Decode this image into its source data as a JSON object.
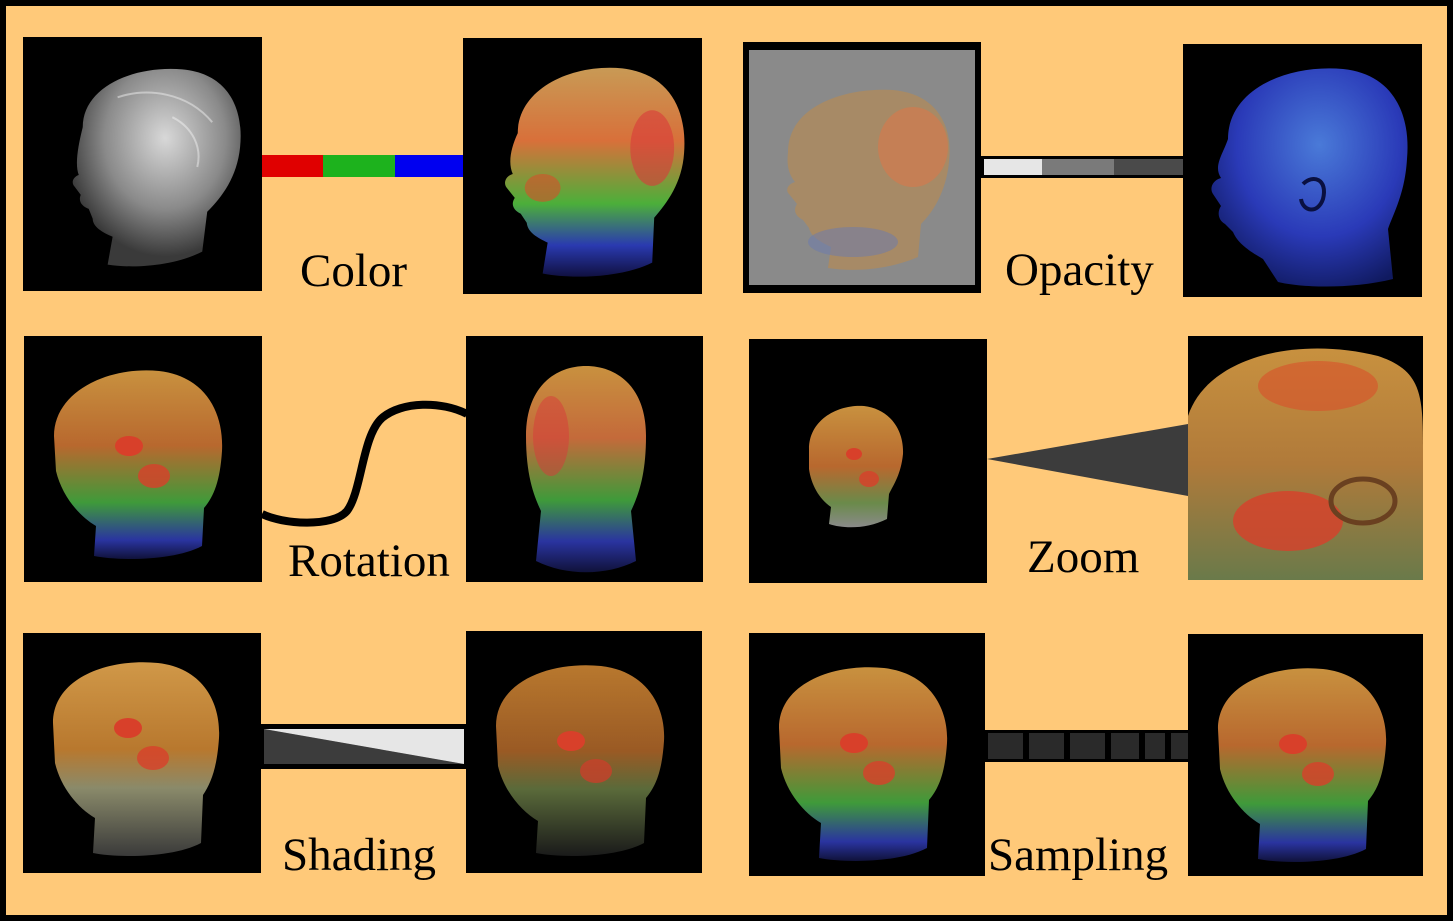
{
  "panels": [
    {
      "caption": "Color",
      "before": "head-grayscale-image",
      "after": "head-color-mapped-image",
      "connector": "red-green-blue-bar"
    },
    {
      "caption": "Opacity",
      "before": "head-low-opacity-image",
      "after": "head-high-opacity-blue-image",
      "connector": "gray-gradient-bar"
    },
    {
      "caption": "Rotation",
      "before": "head-side-view-image",
      "after": "head-back-view-image",
      "connector": "curved-s-line"
    },
    {
      "caption": "Zoom",
      "before": "head-zoomed-out-image",
      "after": "head-zoomed-in-image",
      "connector": "zoom-wedge"
    },
    {
      "caption": "Shading",
      "before": "head-unshaded-image",
      "after": "head-shaded-image",
      "connector": "shading-wedge"
    },
    {
      "caption": "Sampling",
      "before": "head-low-sampling-image",
      "after": "head-high-sampling-image",
      "connector": "dashed-sampling-bar"
    }
  ],
  "colors": {
    "background": "#ffc979",
    "border": "#000000",
    "connector_red": "#e00000",
    "connector_green": "#1db21d",
    "connector_blue": "#0000f0"
  }
}
